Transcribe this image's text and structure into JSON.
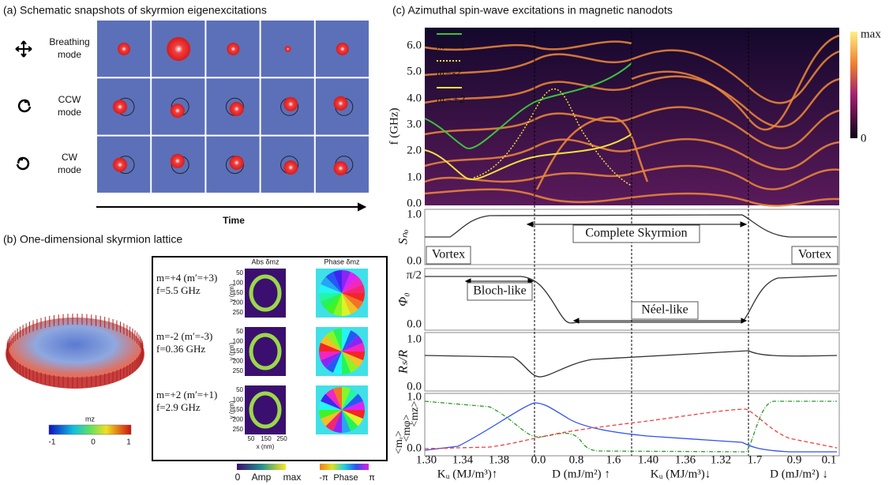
{
  "panel_a": {
    "title": "(a) Schematic snapshots of skyrmion eigenexcitations",
    "rows": [
      [
        "Breathing",
        "mode"
      ],
      [
        "CCW",
        "mode"
      ],
      [
        "CW",
        "mode"
      ]
    ],
    "time_label": "Time"
  },
  "panel_b": {
    "title": "(b) One-dimensional skyrmion lattice",
    "colorbar": {
      "label": "mz",
      "ticks": [
        "-1",
        "0",
        "1"
      ]
    },
    "columns": [
      "Abs δmz",
      "Phase δmz"
    ],
    "modes": [
      {
        "m": "m=+4 (m′=+3)",
        "f": "f=5.5 GHz"
      },
      {
        "m": "m=-2 (m′=-3)",
        "f": "f=0.36 GHz"
      },
      {
        "m": "m=+2 (m′=+1)",
        "f": "f=2.9 GHz"
      }
    ],
    "y_label": "y (nm)",
    "y_ticks": [
      "50",
      "100",
      "150",
      "200",
      "250"
    ],
    "x_label": "x (nm)",
    "x_ticks": [
      "50",
      "150",
      "250"
    ],
    "amp_bar": [
      "0",
      "Amp",
      "max"
    ],
    "phase_bar": [
      "-π",
      "Phase",
      "π"
    ]
  },
  "panel_c": {
    "title": "(c) Azimuthal spin-wave excitations in magnetic nanodots",
    "heatmap": {
      "y_label": "f (GHz)",
      "y_ticks": [
        "0.0",
        "1.0",
        "2.0",
        "3.0",
        "4.0",
        "5.0",
        "6.0"
      ],
      "legend": [
        "m=+4",
        "m=-2",
        "m=+2"
      ],
      "colorbar": [
        "max",
        "0"
      ]
    },
    "s_no": {
      "label": "Sₙₒ",
      "ticks": [
        "0.0",
        "1.0"
      ],
      "annotations": [
        "Complete Skyrmion",
        "Vortex",
        "Vortex"
      ]
    },
    "phi": {
      "label": "Φ₀",
      "ticks": [
        "0.0",
        "π/2"
      ],
      "annotations": [
        "Bloch-like",
        "Néel-like"
      ]
    },
    "rs": {
      "label": "Rₛ/R",
      "ticks": [
        "0.0",
        "1.0"
      ]
    },
    "m": {
      "labels": [
        "<mᵣ>",
        "<mφ>",
        "<mz>"
      ],
      "ticks": [
        "0.0",
        "1.0"
      ]
    },
    "x_ticks": [
      "1.30",
      "1.34",
      "1.38",
      "0.0",
      "0.8",
      "1.6",
      "1.40",
      "1.36",
      "1.32",
      "1.7",
      "0.9",
      "0.1"
    ],
    "x_labels": [
      "Kᵤ (MJ/m³)↑",
      "D (mJ/m²) ↑",
      "Kᵤ (MJ/m³)↓",
      "D (mJ/m²) ↓"
    ]
  }
}
